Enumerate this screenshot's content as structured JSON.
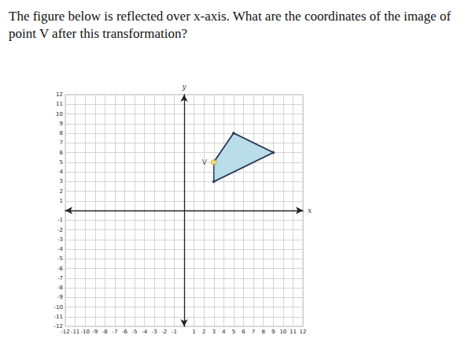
{
  "chart_data": {
    "type": "polygon",
    "title": "The figure below is reflected over x-axis. What are the coordinates of the image of point V after this transformation?",
    "xlabel": "x",
    "ylabel": "y",
    "x": [
      3,
      5,
      9,
      3
    ],
    "y": [
      5,
      8,
      6,
      3
    ],
    "labels": [
      "V",
      null,
      null,
      null
    ],
    "color": "#b9dcea",
    "marker": "circle",
    "grid": true,
    "xlim": [
      -12,
      12
    ],
    "xticks": [
      -12,
      -11,
      -10,
      -9,
      -8,
      -7,
      -6,
      -5,
      -4,
      -3,
      -2,
      -1,
      1,
      2,
      3,
      4,
      5,
      6,
      7,
      8,
      9,
      10,
      11,
      12
    ],
    "ylim": [
      -12,
      12
    ],
    "yticks": [
      -12,
      -11,
      -10,
      -9,
      -8,
      -7,
      -6,
      -5,
      -4,
      -3,
      -2,
      -1,
      1,
      2,
      3,
      4,
      5,
      6,
      7,
      8,
      9,
      10,
      11,
      12
    ]
  }
}
